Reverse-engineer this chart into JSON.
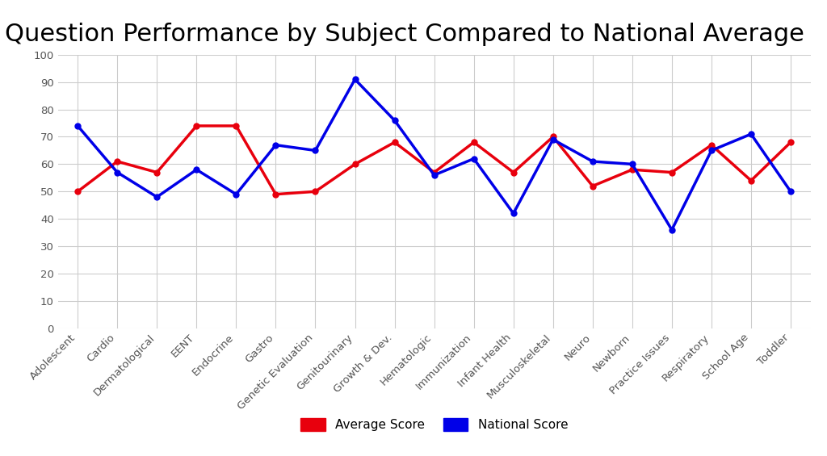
{
  "title": "Question Performance by Subject Compared to National Average",
  "categories": [
    "Adolescent",
    "Cardio",
    "Dermatological",
    "EENT",
    "Endocrine",
    "Gastro",
    "Genetic Evaluation",
    "Genitourinary",
    "Growth & Dev.",
    "Hematologic",
    "Immunization",
    "Infant Health",
    "Musculoskeletal",
    "Neuro",
    "Newborn",
    "Practice Issues",
    "Respiratory",
    "School Age",
    "Toddler"
  ],
  "average_score": [
    50,
    61,
    57,
    74,
    74,
    49,
    50,
    60,
    68,
    57,
    68,
    57,
    70,
    52,
    58,
    57,
    67,
    54,
    68
  ],
  "national_score": [
    74,
    57,
    48,
    58,
    49,
    67,
    65,
    91,
    76,
    56,
    62,
    42,
    69,
    61,
    60,
    36,
    65,
    71,
    50
  ],
  "average_score_color": "#e8000d",
  "national_score_color": "#0000e8",
  "ylim": [
    0,
    100
  ],
  "yticks": [
    0,
    10,
    20,
    30,
    40,
    50,
    60,
    70,
    80,
    90,
    100
  ],
  "background_color": "#ffffff",
  "grid_color": "#cccccc",
  "title_fontsize": 22,
  "legend_labels": [
    "Average Score",
    "National Score"
  ],
  "line_width": 2.5,
  "marker_size": 5
}
